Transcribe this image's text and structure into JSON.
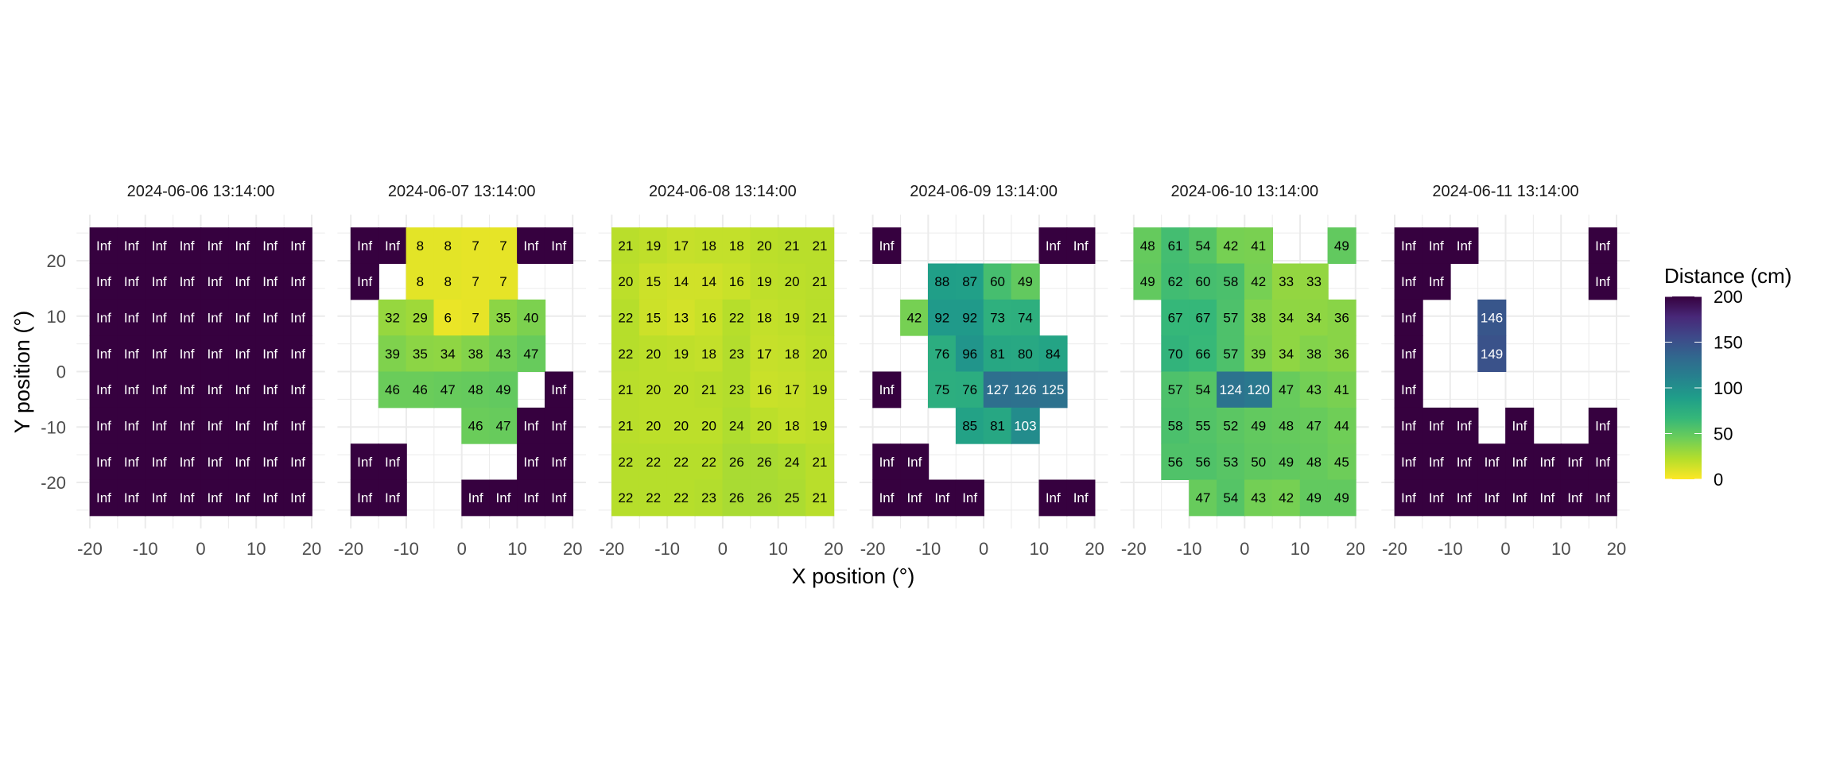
{
  "chart_data": {
    "type": "heatmap",
    "xlabel": "X position (°)",
    "ylabel": "Y position (°)",
    "x_ticks": [
      "-20",
      "-10",
      "0",
      "10",
      "20"
    ],
    "y_ticks": [
      "20",
      "10",
      "0",
      "-10",
      "-20"
    ],
    "x_tick_values": [
      -20,
      -10,
      0,
      10,
      20
    ],
    "y_tick_values": [
      20,
      10,
      0,
      -10,
      -20
    ],
    "x_centers": [
      -17.5,
      -12.5,
      -7.5,
      -2.5,
      2.5,
      7.5,
      12.5,
      17.5
    ],
    "y_centers": [
      22.75,
      16.25,
      9.75,
      3.25,
      -3.25,
      -9.75,
      -16.25,
      -22.75
    ],
    "grid": true,
    "legend": {
      "title": "Distance (cm)",
      "position": "right",
      "ticks": [
        "0",
        "50",
        "100",
        "150",
        "200"
      ],
      "tick_values": [
        0,
        50,
        100,
        150,
        200
      ],
      "range": [
        0,
        200
      ],
      "palette": "viridis (reversed: 0 = yellow, 200 = dark purple)",
      "inf_color": "#36013f"
    },
    "panels": [
      {
        "title": "2024-06-06 13:14:00",
        "rows": [
          [
            "Inf",
            "Inf",
            "Inf",
            "Inf",
            "Inf",
            "Inf",
            "Inf",
            "Inf"
          ],
          [
            "Inf",
            "Inf",
            "Inf",
            "Inf",
            "Inf",
            "Inf",
            "Inf",
            "Inf"
          ],
          [
            "Inf",
            "Inf",
            "Inf",
            "Inf",
            "Inf",
            "Inf",
            "Inf",
            "Inf"
          ],
          [
            "Inf",
            "Inf",
            "Inf",
            "Inf",
            "Inf",
            "Inf",
            "Inf",
            "Inf"
          ],
          [
            "Inf",
            "Inf",
            "Inf",
            "Inf",
            "Inf",
            "Inf",
            "Inf",
            "Inf"
          ],
          [
            "Inf",
            "Inf",
            "Inf",
            "Inf",
            "Inf",
            "Inf",
            "Inf",
            "Inf"
          ],
          [
            "Inf",
            "Inf",
            "Inf",
            "Inf",
            "Inf",
            "Inf",
            "Inf",
            "Inf"
          ],
          [
            "Inf",
            "Inf",
            "Inf",
            "Inf",
            "Inf",
            "Inf",
            "Inf",
            "Inf"
          ]
        ]
      },
      {
        "title": "2024-06-07 13:14:00",
        "rows": [
          [
            "Inf",
            "Inf",
            8,
            8,
            7,
            7,
            "Inf",
            "Inf"
          ],
          [
            "Inf",
            null,
            8,
            8,
            7,
            7,
            null,
            null
          ],
          [
            null,
            32,
            29,
            6,
            7,
            35,
            40,
            null
          ],
          [
            null,
            39,
            35,
            34,
            38,
            43,
            47,
            null
          ],
          [
            null,
            46,
            46,
            47,
            48,
            49,
            null,
            "Inf"
          ],
          [
            null,
            null,
            null,
            null,
            46,
            47,
            "Inf",
            "Inf"
          ],
          [
            "Inf",
            "Inf",
            null,
            null,
            null,
            null,
            "Inf",
            "Inf"
          ],
          [
            "Inf",
            "Inf",
            null,
            null,
            "Inf",
            "Inf",
            "Inf",
            "Inf"
          ]
        ]
      },
      {
        "title": "2024-06-08 13:14:00",
        "rows": [
          [
            21,
            19,
            17,
            18,
            18,
            20,
            21,
            21
          ],
          [
            20,
            15,
            14,
            14,
            16,
            19,
            20,
            21
          ],
          [
            22,
            15,
            13,
            16,
            22,
            18,
            19,
            21
          ],
          [
            22,
            20,
            19,
            18,
            23,
            17,
            18,
            20
          ],
          [
            21,
            20,
            20,
            21,
            23,
            16,
            17,
            19
          ],
          [
            21,
            20,
            20,
            20,
            24,
            20,
            18,
            19
          ],
          [
            22,
            22,
            22,
            22,
            26,
            26,
            24,
            21
          ],
          [
            22,
            22,
            22,
            23,
            26,
            26,
            25,
            21
          ]
        ]
      },
      {
        "title": "2024-06-09 13:14:00",
        "rows": [
          [
            "Inf",
            null,
            null,
            null,
            null,
            null,
            "Inf",
            "Inf"
          ],
          [
            null,
            null,
            88,
            87,
            60,
            49,
            null,
            null
          ],
          [
            null,
            42,
            92,
            92,
            73,
            74,
            null,
            null
          ],
          [
            null,
            null,
            76,
            96,
            81,
            80,
            84,
            null
          ],
          [
            "Inf",
            null,
            75,
            76,
            127,
            126,
            125,
            null
          ],
          [
            null,
            null,
            null,
            85,
            81,
            103,
            null,
            null
          ],
          [
            "Inf",
            "Inf",
            null,
            null,
            null,
            null,
            null,
            null
          ],
          [
            "Inf",
            "Inf",
            "Inf",
            "Inf",
            null,
            null,
            "Inf",
            "Inf"
          ]
        ]
      },
      {
        "title": "2024-06-10 13:14:00",
        "rows": [
          [
            48,
            61,
            54,
            42,
            41,
            null,
            null,
            49
          ],
          [
            49,
            62,
            60,
            58,
            42,
            33,
            33,
            null
          ],
          [
            null,
            67,
            67,
            57,
            38,
            34,
            34,
            36
          ],
          [
            null,
            70,
            66,
            57,
            39,
            34,
            38,
            36
          ],
          [
            null,
            57,
            54,
            124,
            120,
            47,
            43,
            41
          ],
          [
            null,
            58,
            55,
            52,
            49,
            48,
            47,
            44
          ],
          [
            null,
            56,
            56,
            53,
            50,
            49,
            48,
            45
          ],
          [
            null,
            null,
            47,
            54,
            43,
            42,
            49,
            49
          ]
        ]
      },
      {
        "title": "2024-06-11 13:14:00",
        "rows": [
          [
            "Inf",
            "Inf",
            "Inf",
            null,
            null,
            null,
            null,
            "Inf"
          ],
          [
            "Inf",
            "Inf",
            null,
            null,
            null,
            null,
            null,
            "Inf"
          ],
          [
            "Inf",
            null,
            null,
            146,
            null,
            null,
            null,
            null
          ],
          [
            "Inf",
            null,
            null,
            149,
            null,
            null,
            null,
            null
          ],
          [
            "Inf",
            null,
            null,
            null,
            null,
            null,
            null,
            null
          ],
          [
            "Inf",
            "Inf",
            "Inf",
            null,
            "Inf",
            null,
            null,
            "Inf"
          ],
          [
            "Inf",
            "Inf",
            "Inf",
            "Inf",
            "Inf",
            "Inf",
            "Inf",
            "Inf"
          ],
          [
            "Inf",
            "Inf",
            "Inf",
            "Inf",
            "Inf",
            "Inf",
            "Inf",
            "Inf"
          ]
        ]
      }
    ]
  }
}
